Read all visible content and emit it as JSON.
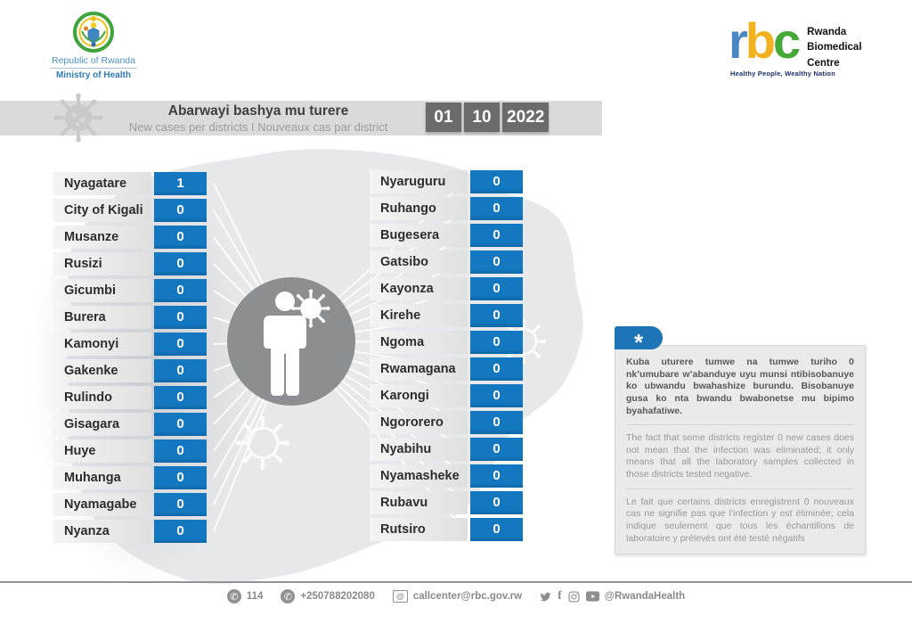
{
  "branding": {
    "coat_of_arms": "Rwanda coat of arms",
    "republic": "Republic of Rwanda",
    "ministry": "Ministry of Health",
    "rbc_letters": [
      "r",
      "b",
      "c"
    ],
    "rbc_name_lines": [
      "Rwanda",
      "Biomedical",
      "Centre"
    ],
    "rbc_tagline": "Healthy People, Wealthy Nation"
  },
  "header": {
    "title": "Abarwayi bashya mu turere",
    "subtitle": "New cases per districts  I  Nouveaux cas par district",
    "date": {
      "day": "01",
      "month": "10",
      "year": "2022"
    }
  },
  "districts": {
    "left": [
      {
        "name": "Nyagatare",
        "value": "1"
      },
      {
        "name": "City of Kigali",
        "value": "0"
      },
      {
        "name": "Musanze",
        "value": "0"
      },
      {
        "name": "Rusizi",
        "value": "0"
      },
      {
        "name": "Gicumbi",
        "value": "0"
      },
      {
        "name": "Burera",
        "value": "0"
      },
      {
        "name": "Kamonyi",
        "value": "0"
      },
      {
        "name": "Gakenke",
        "value": "0"
      },
      {
        "name": "Rulindo",
        "value": "0"
      },
      {
        "name": "Gisagara",
        "value": "0"
      },
      {
        "name": "Huye",
        "value": "0"
      },
      {
        "name": "Muhanga",
        "value": "0"
      },
      {
        "name": "Nyamagabe",
        "value": "0"
      },
      {
        "name": "Nyanza",
        "value": "0"
      }
    ],
    "right": [
      {
        "name": "Nyaruguru",
        "value": "0"
      },
      {
        "name": "Ruhango",
        "value": "0"
      },
      {
        "name": "Bugesera",
        "value": "0"
      },
      {
        "name": "Gatsibo",
        "value": "0"
      },
      {
        "name": "Kayonza",
        "value": "0"
      },
      {
        "name": "Kirehe",
        "value": "0"
      },
      {
        "name": "Ngoma",
        "value": "0"
      },
      {
        "name": "Rwamagana",
        "value": "0"
      },
      {
        "name": "Karongi",
        "value": "0"
      },
      {
        "name": "Ngororero",
        "value": "0"
      },
      {
        "name": "Nyabihu",
        "value": "0"
      },
      {
        "name": "Nyamasheke",
        "value": "0"
      },
      {
        "name": "Rubavu",
        "value": "0"
      },
      {
        "name": "Rutsiro",
        "value": "0"
      }
    ]
  },
  "info_box": {
    "marker": "*",
    "kinyarwanda": "Kuba uturere tumwe na tumwe turiho 0 nk’umubare w’abanduye  uyu munsi ntibisobanuye ko ubwandu bwahashize burundu. Bisobanuye gusa ko nta bwandu bwabonetse mu bipimo byahafatiwe.",
    "english": "The fact that some districts register 0 new cases does not mean that the infection was eliminated; it only means that all the laboratory samples collected in those districts tested negative.",
    "french": "Le fait que certains districts enregistrent 0 nouveaux cas ne signifie pas que l’infection y est éliminée; cela indique seulement que tous les échantillons de laboratoire y prélevés ont été testé négatifs"
  },
  "footer": {
    "phone_short": "114",
    "phone_long": "+250788202080",
    "email": "callcenter@rbc.gov.rw",
    "social_handle": "@RwandaHealth"
  },
  "colors": {
    "accent_blue": "#1478c0",
    "date_box_gray": "#6b6b6b",
    "band_gray": "#dadada",
    "map_gray": "#e7e8ea",
    "circle_gray": "#8c8f91",
    "rbc_r_blue": "#4a86c5",
    "rbc_b_yellow": "#f2b21d",
    "rbc_c_green": "#45a837"
  },
  "chart_data": {
    "type": "table",
    "title": "Abarwayi bashya mu turere (New cases per districts / Nouveaux cas par district)",
    "date": "01 10 2022",
    "categories": [
      "Nyagatare",
      "City of Kigali",
      "Musanze",
      "Rusizi",
      "Gicumbi",
      "Burera",
      "Kamonyi",
      "Gakenke",
      "Rulindo",
      "Gisagara",
      "Huye",
      "Muhanga",
      "Nyamagabe",
      "Nyanza",
      "Nyaruguru",
      "Ruhango",
      "Bugesera",
      "Gatsibo",
      "Kayonza",
      "Kirehe",
      "Ngoma",
      "Rwamagana",
      "Karongi",
      "Ngororero",
      "Nyabihu",
      "Nyamasheke",
      "Rubavu",
      "Rutsiro"
    ],
    "values": [
      1,
      0,
      0,
      0,
      0,
      0,
      0,
      0,
      0,
      0,
      0,
      0,
      0,
      0,
      0,
      0,
      0,
      0,
      0,
      0,
      0,
      0,
      0,
      0,
      0,
      0,
      0,
      0
    ]
  }
}
